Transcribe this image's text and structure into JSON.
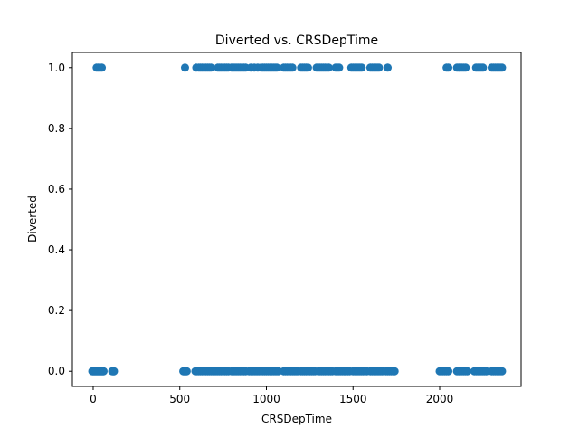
{
  "chart_data": {
    "type": "scatter",
    "title": "Diverted vs. CRSDepTime",
    "xlabel": "CRSDepTime",
    "ylabel": "Diverted",
    "xlim": [
      -120,
      2470
    ],
    "ylim": [
      -0.05,
      1.05
    ],
    "xticks": [
      0,
      500,
      1000,
      1500,
      2000
    ],
    "yticks": [
      0.0,
      0.2,
      0.4,
      0.6,
      0.8,
      1.0
    ],
    "xtick_labels": [
      "0",
      "500",
      "1000",
      "1500",
      "2000"
    ],
    "ytick_labels": [
      "0.0",
      "0.2",
      "0.4",
      "0.6",
      "0.8",
      "1.0"
    ],
    "grid": false,
    "marker_color": "#1f77b4",
    "series": [
      {
        "values_diverted_1": [
          20,
          30,
          40,
          50,
          530,
          595,
          610,
          620,
          630,
          640,
          650,
          660,
          670,
          680,
          720,
          730,
          740,
          750,
          760,
          770,
          780,
          800,
          810,
          820,
          830,
          840,
          850,
          860,
          870,
          880,
          910,
          930,
          950,
          970,
          980,
          990,
          1000,
          1010,
          1020,
          1030,
          1040,
          1050,
          1060,
          1100,
          1110,
          1120,
          1130,
          1140,
          1150,
          1200,
          1210,
          1220,
          1230,
          1240,
          1290,
          1300,
          1310,
          1320,
          1330,
          1340,
          1350,
          1360,
          1400,
          1410,
          1420,
          1490,
          1500,
          1510,
          1520,
          1530,
          1540,
          1550,
          1600,
          1610,
          1620,
          1630,
          1640,
          1650,
          1700,
          2040,
          2050,
          2100,
          2110,
          2120,
          2130,
          2140,
          2150,
          2210,
          2220,
          2230,
          2240,
          2250,
          2300,
          2310,
          2320,
          2330,
          2340,
          2350,
          2360
        ],
        "values_diverted_0": [
          -5,
          0,
          5,
          10,
          15,
          20,
          25,
          30,
          35,
          40,
          45,
          50,
          55,
          60,
          110,
          115,
          120,
          520,
          525,
          530,
          535,
          540,
          590,
          600,
          610,
          620,
          630,
          640,
          650,
          660,
          670,
          680,
          690,
          700,
          710,
          720,
          730,
          740,
          750,
          760,
          770,
          780,
          800,
          810,
          820,
          830,
          840,
          850,
          860,
          870,
          880,
          900,
          910,
          920,
          930,
          940,
          950,
          960,
          970,
          980,
          990,
          1000,
          1010,
          1020,
          1030,
          1040,
          1050,
          1060,
          1070,
          1100,
          1110,
          1120,
          1130,
          1140,
          1150,
          1160,
          1170,
          1180,
          1200,
          1210,
          1220,
          1230,
          1240,
          1250,
          1260,
          1270,
          1280,
          1300,
          1310,
          1320,
          1330,
          1340,
          1350,
          1360,
          1370,
          1380,
          1400,
          1410,
          1420,
          1430,
          1440,
          1450,
          1460,
          1470,
          1480,
          1500,
          1510,
          1520,
          1530,
          1540,
          1550,
          1560,
          1570,
          1580,
          1600,
          1610,
          1620,
          1630,
          1640,
          1650,
          1660,
          1670,
          1690,
          1700,
          1710,
          1720,
          1730,
          1740,
          2000,
          2010,
          2020,
          2030,
          2040,
          2050,
          2100,
          2110,
          2120,
          2130,
          2140,
          2150,
          2160,
          2200,
          2210,
          2220,
          2230,
          2240,
          2250,
          2260,
          2270,
          2300,
          2310,
          2320,
          2330,
          2340,
          2350,
          2360
        ]
      }
    ]
  }
}
